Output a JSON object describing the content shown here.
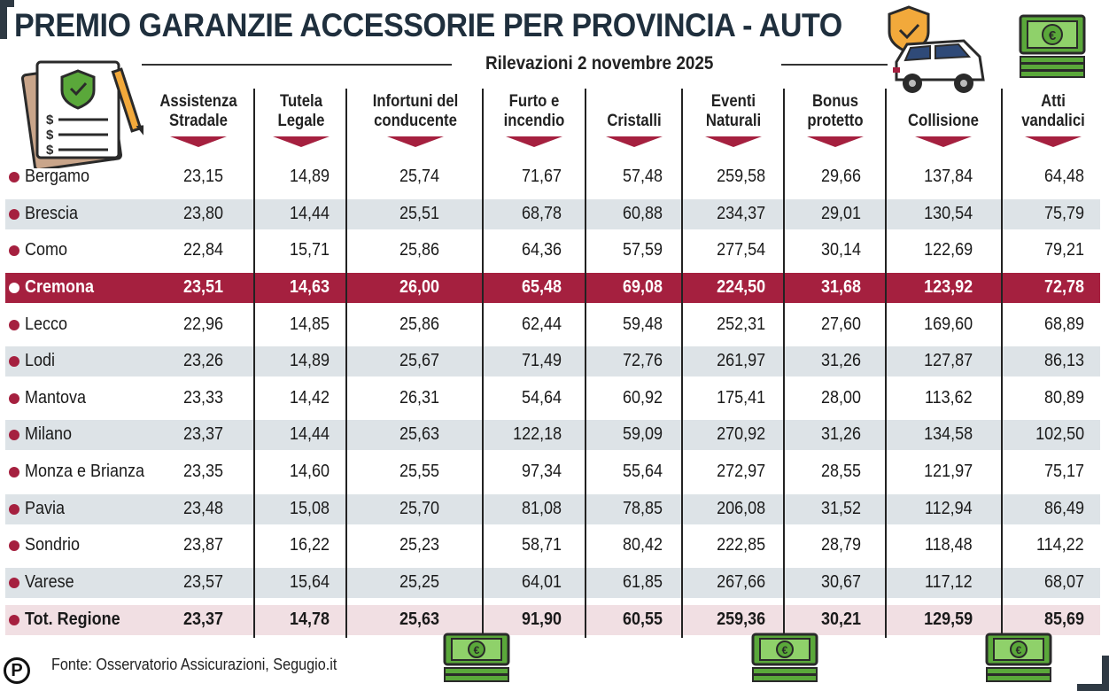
{
  "title": "PREMIO GARANZIE ACCESSORIE PER PROVINCIA - AUTO",
  "subtitle": "Rilevazioni 2 novembre 2025",
  "columns": [
    "Assistenza Stradale",
    "Tutela Legale",
    "Infortuni del conducente",
    "Furto e incendio",
    "Cristalli",
    "Eventi Naturali",
    "Bonus protetto",
    "Collisione",
    "Atti vandalici"
  ],
  "rows": [
    {
      "name": "Bergamo",
      "values": [
        "23,15",
        "14,89",
        "25,74",
        "71,67",
        "57,48",
        "259,58",
        "29,66",
        "137,84",
        "64,48"
      ]
    },
    {
      "name": "Brescia",
      "values": [
        "23,80",
        "14,44",
        "25,51",
        "68,78",
        "60,88",
        "234,37",
        "29,01",
        "130,54",
        "75,79"
      ]
    },
    {
      "name": "Como",
      "values": [
        "22,84",
        "15,71",
        "25,86",
        "64,36",
        "57,59",
        "277,54",
        "30,14",
        "122,69",
        "79,21"
      ]
    },
    {
      "name": "Cremona",
      "values": [
        "23,51",
        "14,63",
        "26,00",
        "65,48",
        "69,08",
        "224,50",
        "31,68",
        "123,92",
        "72,78"
      ]
    },
    {
      "name": "Lecco",
      "values": [
        "22,96",
        "14,85",
        "25,86",
        "62,44",
        "59,48",
        "252,31",
        "27,60",
        "169,60",
        "68,89"
      ]
    },
    {
      "name": "Lodi",
      "values": [
        "23,26",
        "14,89",
        "25,67",
        "71,49",
        "72,76",
        "261,97",
        "31,26",
        "127,87",
        "86,13"
      ]
    },
    {
      "name": "Mantova",
      "values": [
        "23,33",
        "14,42",
        "26,31",
        "54,64",
        "60,92",
        "175,41",
        "28,00",
        "113,62",
        "80,89"
      ]
    },
    {
      "name": "Milano",
      "values": [
        "23,37",
        "14,44",
        "25,63",
        "122,18",
        "59,09",
        "270,92",
        "31,26",
        "134,58",
        "102,50"
      ]
    },
    {
      "name": "Monza e Brianza",
      "values": [
        "23,35",
        "14,60",
        "25,55",
        "97,34",
        "55,64",
        "272,97",
        "28,55",
        "121,97",
        "75,17"
      ]
    },
    {
      "name": "Pavia",
      "values": [
        "23,48",
        "15,08",
        "25,70",
        "81,08",
        "78,85",
        "206,08",
        "31,52",
        "112,94",
        "86,49"
      ]
    },
    {
      "name": "Sondrio",
      "values": [
        "23,87",
        "16,22",
        "25,23",
        "58,71",
        "80,42",
        "222,85",
        "28,79",
        "118,48",
        "114,22"
      ]
    },
    {
      "name": "Varese",
      "values": [
        "23,57",
        "15,64",
        "25,25",
        "64,01",
        "61,85",
        "267,66",
        "30,67",
        "117,12",
        "68,07"
      ]
    },
    {
      "name": "Tot. Regione",
      "values": [
        "23,37",
        "14,78",
        "25,63",
        "91,90",
        "60,55",
        "259,36",
        "30,21",
        "129,59",
        "85,69"
      ]
    }
  ],
  "highlight_row": "Cremona",
  "source": "Fonte: Osservatorio Assicurazioni, Segugio.it",
  "logo": "P",
  "colors": {
    "accent": "#a5203f",
    "stripe": "#dde3e7",
    "total_bg": "#f1dfe3",
    "title": "#1f2f3d",
    "money_green": "#5aa83a",
    "shield_orange": "#f2a93b"
  },
  "icons": [
    "insurance-document-icon",
    "shield-check-icon",
    "car-icon",
    "banknote-stack-icon",
    "euro-icon"
  ]
}
